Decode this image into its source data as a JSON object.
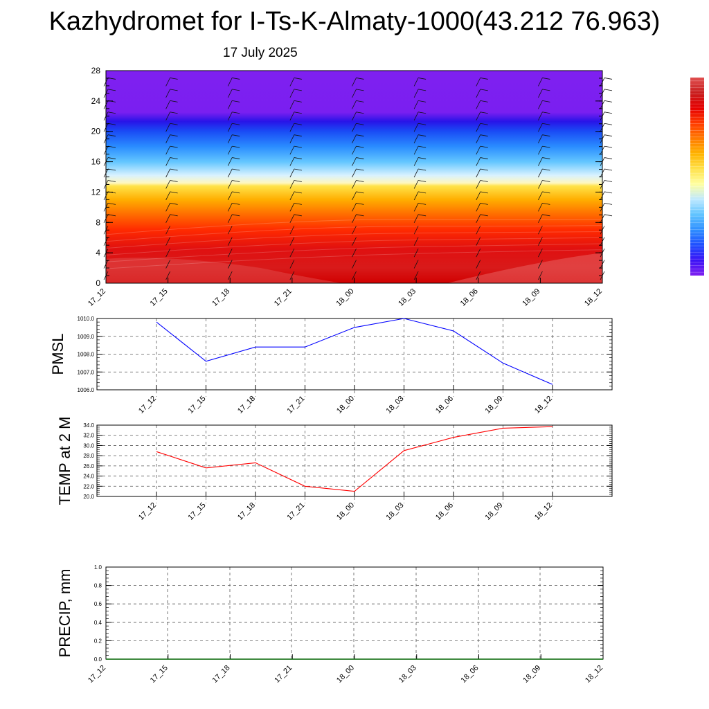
{
  "title": "Kazhydromet for I-Ts-K-Almaty-1000(43.212 76.963)",
  "subtitle": "17 July 2025",
  "colors": {
    "pmsl_line": "#0000ff",
    "temp_line": "#ff0000",
    "precip_line": "#006400",
    "grid": "#555555"
  },
  "chart_data": [
    {
      "type": "heatmap",
      "name": "cross-section",
      "ylim": [
        0,
        28
      ],
      "yticks": [
        "0",
        "4",
        "8",
        "12",
        "16",
        "20",
        "24",
        "28"
      ],
      "categories": [
        "17_12",
        "17_15",
        "17_18",
        "17_21",
        "18_00",
        "18_03",
        "18_06",
        "18_09",
        "18_12"
      ],
      "levels_top": {
        "warm_red": [
          3,
          3,
          4,
          4,
          5,
          5,
          5,
          4,
          4
        ],
        "yellow": [
          13,
          13,
          13,
          13,
          13,
          13,
          13,
          13.3,
          13.6
        ],
        "blue": [
          21,
          21,
          21,
          21,
          21,
          21,
          21,
          21,
          21
        ]
      },
      "colorbar": [
        "#7f1ff0",
        "#3b13f5",
        "#1f4fff",
        "#2f8fff",
        "#5fc3ff",
        "#bfe9ff",
        "#ffffa0",
        "#ffe14a",
        "#ffb400",
        "#ff7a00",
        "#ff3c00",
        "#e60000",
        "#c81e1e",
        "#e05050"
      ]
    },
    {
      "type": "line",
      "name": "pmsl",
      "ylabel": "PMSL",
      "categories": [
        "17_12",
        "17_15",
        "17_18",
        "17_21",
        "18_00",
        "18_03",
        "18_06",
        "18_09",
        "18_12"
      ],
      "values": [
        1009.8,
        1007.6,
        1008.4,
        1008.4,
        1009.5,
        1010.0,
        1009.3,
        1007.5,
        1006.3
      ],
      "ylim": [
        1006.0,
        1010.0
      ],
      "yticks": [
        "1006.0",
        "1007.0",
        "1008.0",
        "1009.0",
        "1010.0"
      ]
    },
    {
      "type": "line",
      "name": "temp",
      "ylabel": "TEMP at 2 M",
      "categories": [
        "17_12",
        "17_15",
        "17_18",
        "17_21",
        "18_00",
        "18_03",
        "18_06",
        "18_09",
        "18_12"
      ],
      "values": [
        28.8,
        25.6,
        26.6,
        22.0,
        21.0,
        29.0,
        31.6,
        33.4,
        33.7
      ],
      "ylim": [
        20.0,
        34.0
      ],
      "yticks": [
        "20.0",
        "22.0",
        "24.0",
        "26.0",
        "28.0",
        "30.0",
        "32.0",
        "34.0"
      ]
    },
    {
      "type": "line",
      "name": "precip",
      "ylabel": "PRECIP, mm",
      "categories": [
        "17_12",
        "17_15",
        "17_18",
        "17_21",
        "18_00",
        "18_03",
        "18_06",
        "18_09",
        "18_12"
      ],
      "values": [
        0,
        0,
        0,
        0,
        0,
        0,
        0,
        0,
        0
      ],
      "ylim": [
        0.0,
        1.0
      ],
      "yticks": [
        "0.0",
        "0.2",
        "0.4",
        "0.6",
        "0.8",
        "1.0"
      ]
    }
  ]
}
